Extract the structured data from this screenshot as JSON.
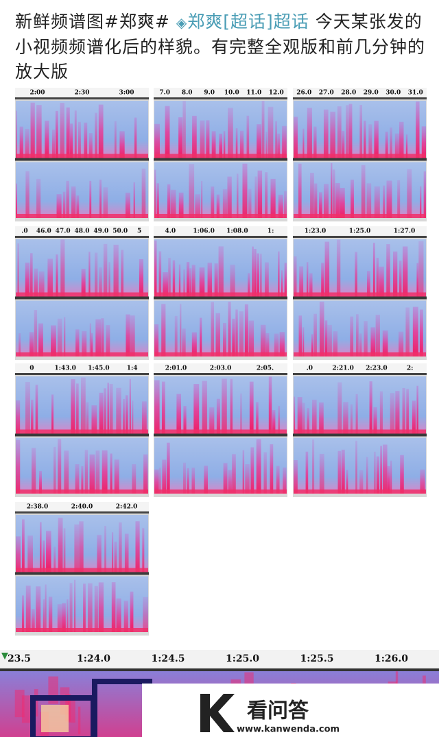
{
  "post": {
    "hashtag": "新鲜频谱图#郑爽#",
    "topic_link": "郑爽[超话]超话",
    "text": "今天某张发的小视频频谱化后的样貌。有完整全观版和前几分钟的放大版"
  },
  "panels": [
    {
      "ticks": [
        "2:00",
        "2:30",
        "3:00"
      ]
    },
    {
      "ticks": [
        "7.0",
        "8.0",
        "9.0",
        "10.0",
        "11.0",
        "12.0"
      ]
    },
    {
      "ticks": [
        "26.0",
        "27.0",
        "28.0",
        "29.0",
        "30.0",
        "31.0"
      ]
    },
    {
      "ticks": [
        ".0",
        "46.0",
        "47.0",
        "48.0",
        "49.0",
        "50.0",
        "5"
      ]
    },
    {
      "ticks": [
        "4.0",
        "1:06.0",
        "1:08.0",
        "1:"
      ]
    },
    {
      "ticks": [
        "1:23.0",
        "1:25.0",
        "1:27.0"
      ]
    },
    {
      "ticks": [
        "0",
        "1:43.0",
        "1:45.0",
        "1:4"
      ]
    },
    {
      "ticks": [
        "2:01.0",
        "2:03.0",
        "2:05."
      ]
    },
    {
      "ticks": [
        ".0",
        "2:21.0",
        "2:23.0",
        "2:"
      ]
    },
    {
      "ticks": [
        "2:38.0",
        "2:40.0",
        "2:42.0"
      ]
    }
  ],
  "zoom": {
    "ticks": [
      "23.5",
      "1:24.0",
      "1:24.5",
      "1:25.0",
      "1:25.5",
      "1:26.0"
    ]
  },
  "watermark": {
    "name": "看问答",
    "url": "www.kanwenda.com"
  }
}
